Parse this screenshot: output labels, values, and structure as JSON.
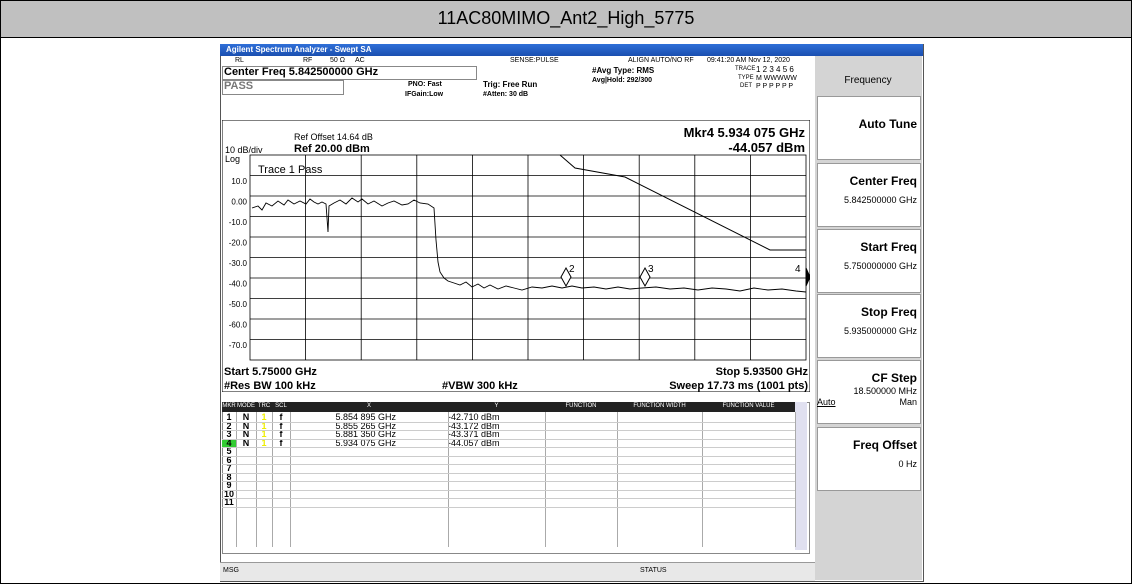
{
  "document": {
    "title": "11AC80MIMO_Ant2_High_5775"
  },
  "window": {
    "title": "Agilent Spectrum Analyzer - Swept SA"
  },
  "status": {
    "rl": "RL",
    "rf": "RF",
    "impedance": "50 Ω",
    "coupling": "AC",
    "sense": "SENSE:PULSE",
    "align": "ALIGN AUTO/NO RF",
    "datetime": "09:41:20 AM Nov 12, 2020",
    "center_freq": "Center Freq 5.842500000 GHz",
    "pass": "PASS",
    "pno": "PNO: Fast",
    "ifgain": "IFGain:Low",
    "trig": "Trig: Free Run",
    "atten": "#Atten: 30 dB",
    "avg_type": "#Avg Type: RMS",
    "avg_hold": "Avg|Hold: 292/300",
    "trace_label": "TRACE",
    "trace_nums": "1 2 3 4 5 6",
    "type_label": "TYPE",
    "type_val": "M WWWWW",
    "det_label": "DET",
    "det_val": "P P P P P P"
  },
  "plot": {
    "ref_offset": "Ref Offset 14.64 dB",
    "scale": "10 dB/div",
    "ref": "Ref 20.00 dBm",
    "log": "Log",
    "marker_readout": "Mkr4 5.934 075 GHz",
    "marker_value": "-44.057 dBm",
    "trace_pass": "Trace 1 Pass",
    "y_labels": [
      "10.0",
      "0.00",
      "-10.0",
      "-20.0",
      "-30.0",
      "-40.0",
      "-50.0",
      "-60.0",
      "-70.0"
    ],
    "marker_labels": [
      "2",
      "3",
      "4"
    ],
    "start": "Start 5.75000 GHz",
    "stop": "Stop 5.93500 GHz",
    "rbw": "#Res BW 100 kHz",
    "vbw": "#VBW 300 kHz",
    "sweep": "Sweep  17.73 ms (1001 pts)"
  },
  "marker_table": {
    "headers": [
      "MKR",
      "MODE",
      "TRC",
      "SCL",
      "X",
      "Y",
      "FUNCTION",
      "FUNCTION WIDTH",
      "FUNCTION VALUE"
    ],
    "rows": [
      [
        "1",
        "N",
        "1",
        "f",
        "5.854 895 GHz",
        "-42.710 dBm"
      ],
      [
        "2",
        "N",
        "1",
        "f",
        "5.855 265 GHz",
        "-43.172 dBm"
      ],
      [
        "3",
        "N",
        "1",
        "f",
        "5.881 350 GHz",
        "-43.371 dBm"
      ],
      [
        "4",
        "N",
        "1",
        "f",
        "5.934 075 GHz",
        "-44.057 dBm"
      ]
    ],
    "empty_rows": [
      "5",
      "6",
      "7",
      "8",
      "9",
      "10",
      "11"
    ]
  },
  "softkeys": {
    "menu": "Frequency",
    "keys": [
      {
        "label": "Auto Tune"
      },
      {
        "label": "Center Freq",
        "value": "5.842500000 GHz"
      },
      {
        "label": "Start Freq",
        "value": "5.750000000 GHz"
      },
      {
        "label": "Stop Freq",
        "value": "5.935000000 GHz"
      },
      {
        "label": "CF Step",
        "value": "18.500000 MHz",
        "auto": "Auto",
        "man": "Man"
      },
      {
        "label": "Freq Offset",
        "value": "0 Hz"
      }
    ]
  },
  "bottom": {
    "msg": "MSG",
    "status": "STATUS"
  }
}
